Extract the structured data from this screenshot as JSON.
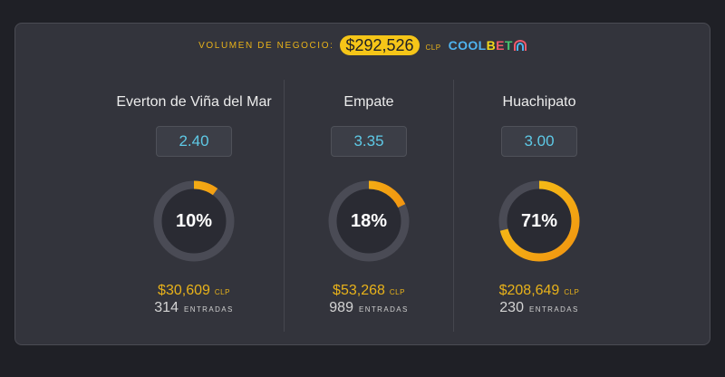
{
  "header": {
    "volume_label": "VOLUMEN DE NEGOCIO:",
    "volume_amount": "$292,526",
    "volume_currency": "CLP",
    "brand": {
      "part1": "COOL",
      "part2": "B",
      "part3": "E",
      "part4": "T"
    }
  },
  "outcomes": [
    {
      "name": "Everton de Viña del Mar",
      "odds": "2.40",
      "percent_label": "10%",
      "percent": 0.1,
      "amount": "$30,609",
      "currency": "CLP",
      "entries": "314",
      "entries_label": "ENTRADAS"
    },
    {
      "name": "Empate",
      "odds": "3.35",
      "percent_label": "18%",
      "percent": 0.18,
      "amount": "$53,268",
      "currency": "CLP",
      "entries": "989",
      "entries_label": "ENTRADAS"
    },
    {
      "name": "Huachipato",
      "odds": "3.00",
      "percent_label": "71%",
      "percent": 0.71,
      "amount": "$208,649",
      "currency": "CLP",
      "entries": "230",
      "entries_label": "ENTRADAS"
    }
  ],
  "colors": {
    "ring_track": "#4a4b55",
    "ring_fill": "#f5c518",
    "ring_fill_end": "#f29410",
    "accent": "#e8b21a",
    "odds_text": "#5ec9e6"
  }
}
